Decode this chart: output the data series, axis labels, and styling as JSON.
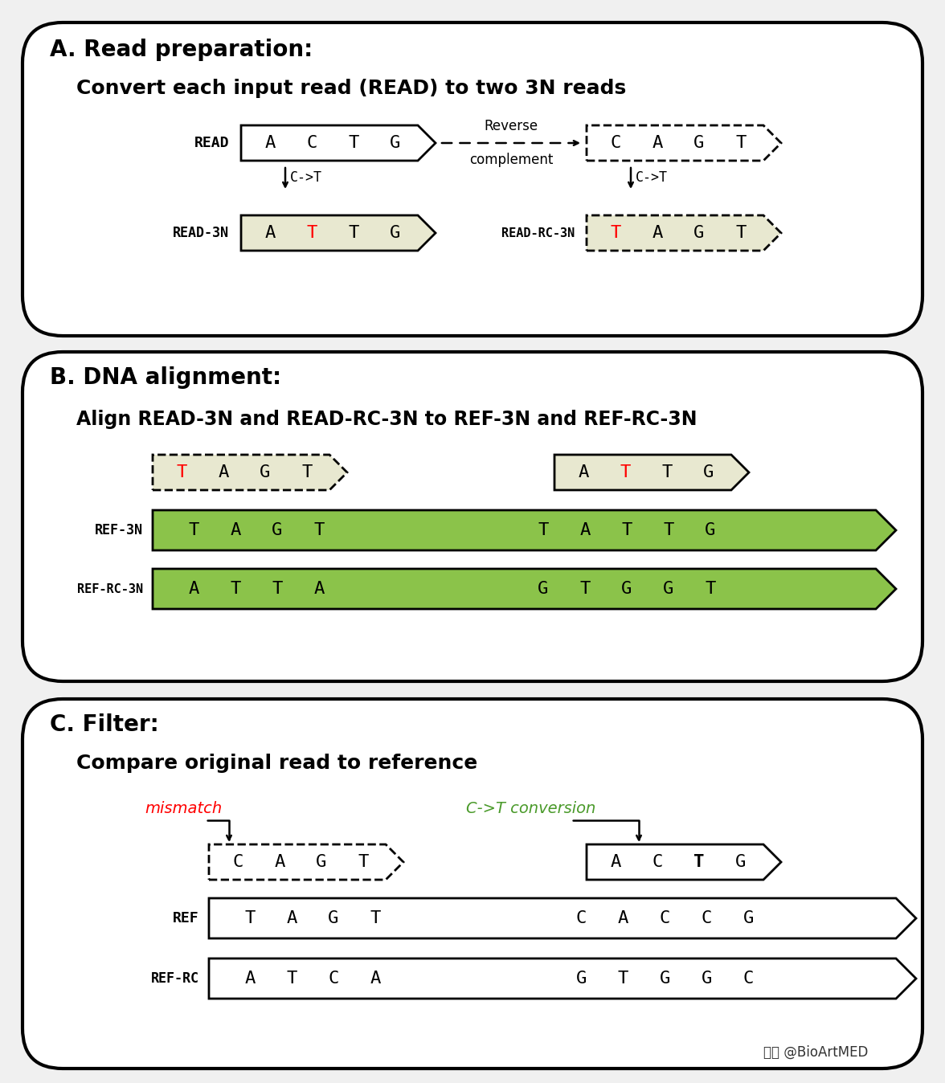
{
  "bg_color": "#f0f0f0",
  "panel_fill": "#ffffff",
  "green_fill": "#8bc34a",
  "beige_fill": "#e8e8d0",
  "panel_A": {
    "title1": "A. Read preparation:",
    "title2": "Convert each input read (READ) to two 3N reads",
    "read_seq": [
      "A",
      "C",
      "T",
      "G"
    ],
    "rc_seq": [
      "C",
      "A",
      "G",
      "T"
    ],
    "read3n_seq": [
      "A",
      "T",
      "T",
      "G"
    ],
    "read3n_red": [
      1
    ],
    "readrc3n_seq": [
      "T",
      "A",
      "G",
      "T"
    ],
    "readrc3n_red": [
      0
    ]
  },
  "panel_B": {
    "title1": "B. DNA alignment:",
    "title2": "Align READ-3N and READ-RC-3N to REF-3N and REF-RC-3N",
    "top_left_seq": [
      "T",
      "A",
      "G",
      "T"
    ],
    "top_left_red": [
      0
    ],
    "top_right_seq": [
      "A",
      "T",
      "T",
      "G"
    ],
    "top_right_red": [
      1
    ],
    "ref3n_left": [
      "T",
      "A",
      "G",
      "T"
    ],
    "ref3n_right": [
      "T",
      "A",
      "T",
      "T",
      "G"
    ],
    "refrc3n_left": [
      "A",
      "T",
      "T",
      "A"
    ],
    "refrc3n_right": [
      "G",
      "T",
      "G",
      "G",
      "T"
    ]
  },
  "panel_C": {
    "title1": "C. Filter:",
    "title2": "Compare original read to reference",
    "read_left_seq": [
      "C",
      "A",
      "G",
      "T"
    ],
    "read_right_seq": [
      "A",
      "C",
      "T",
      "G"
    ],
    "read_right_bold": [
      2
    ],
    "ref_left": [
      "T",
      "A",
      "G",
      "T"
    ],
    "ref_right": [
      "C",
      "A",
      "C",
      "C",
      "G"
    ],
    "refrc_left": [
      "A",
      "T",
      "C",
      "A"
    ],
    "refrc_right": [
      "G",
      "T",
      "G",
      "G",
      "C"
    ]
  },
  "watermark": "头条 @BioArtMED"
}
